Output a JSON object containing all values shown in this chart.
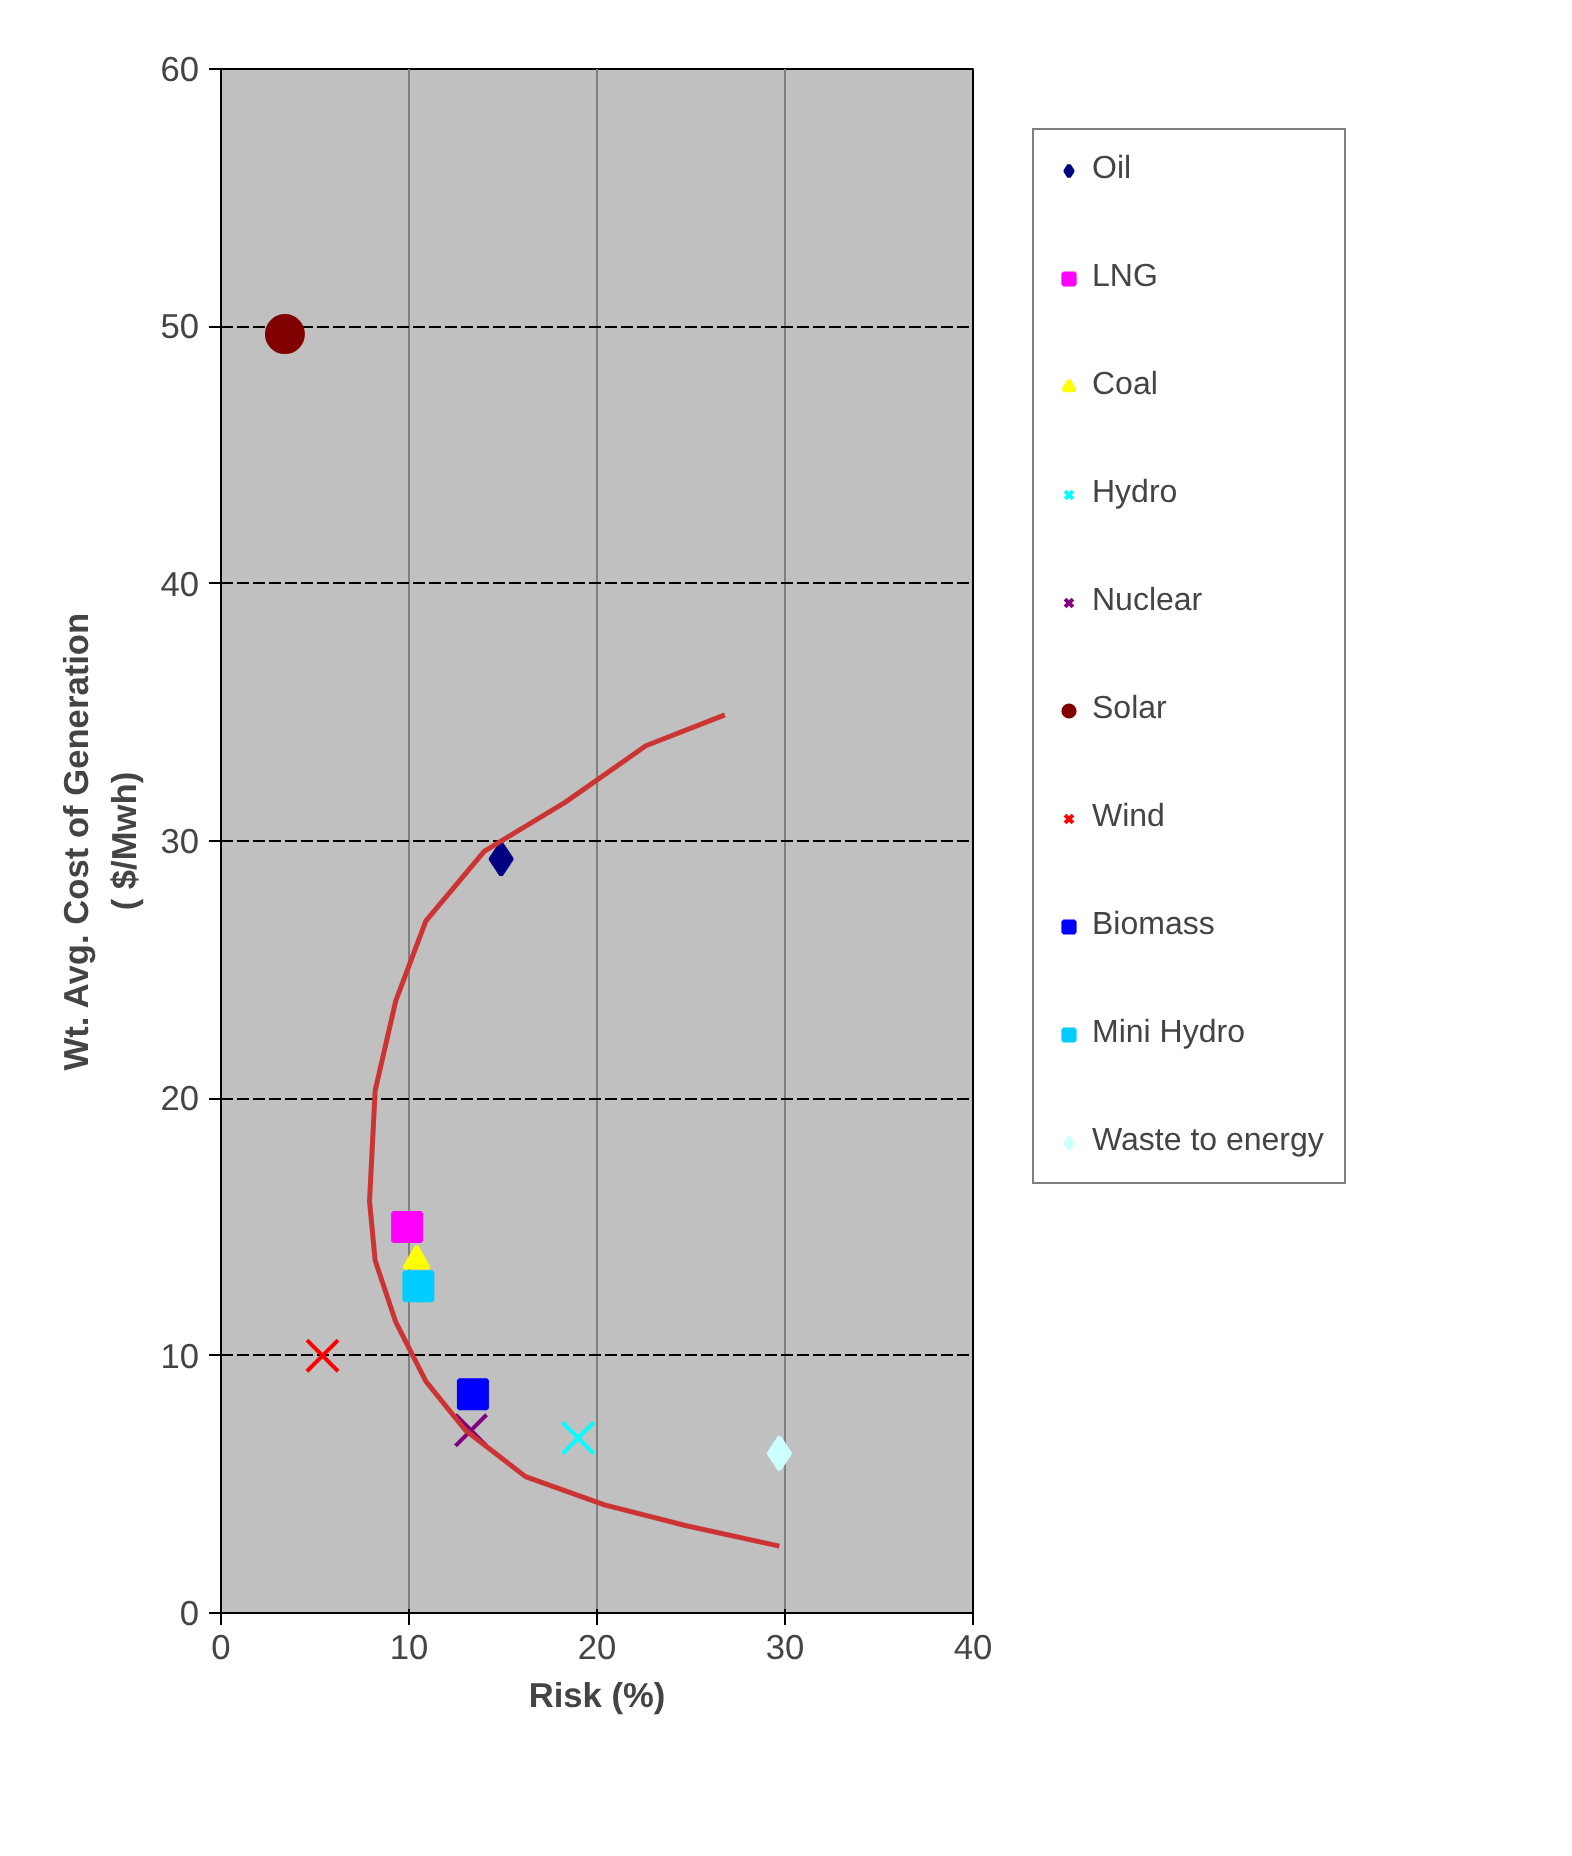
{
  "chart_data": {
    "type": "scatter",
    "xlabel": "Risk (%)",
    "ylabel": "Wt. Avg. Cost of Generation\n( $/Mwh)",
    "xlim": [
      0,
      40
    ],
    "ylim": [
      0,
      60
    ],
    "xticks": [
      0,
      10,
      20,
      30,
      40
    ],
    "yticks": [
      0,
      10,
      20,
      30,
      40,
      50,
      60
    ],
    "grid": true,
    "legend": "right",
    "series": [
      {
        "name": "Oil",
        "color": "#000080",
        "marker": "diamond",
        "x": [
          14.9
        ],
        "values": [
          29.3
        ]
      },
      {
        "name": "LNG",
        "color": "#ff00ff",
        "marker": "square",
        "x": [
          9.9
        ],
        "values": [
          15.0
        ]
      },
      {
        "name": "Coal",
        "color": "#ffff00",
        "marker": "triangle",
        "x": [
          10.4
        ],
        "values": [
          13.7
        ]
      },
      {
        "name": "Hydro",
        "color": "#00ffff",
        "marker": "cross",
        "x": [
          19.0
        ],
        "values": [
          6.8
        ]
      },
      {
        "name": "Nuclear",
        "color": "#800080",
        "marker": "cross",
        "x": [
          13.3
        ],
        "values": [
          7.1
        ]
      },
      {
        "name": "Solar",
        "color": "#800000",
        "marker": "circle",
        "x": [
          3.4
        ],
        "values": [
          49.7
        ]
      },
      {
        "name": "Wind",
        "color": "#ff0000",
        "marker": "cross",
        "x": [
          5.4
        ],
        "values": [
          10.0
        ]
      },
      {
        "name": "Biomass",
        "color": "#0000ff",
        "marker": "square",
        "x": [
          13.4
        ],
        "values": [
          8.5
        ]
      },
      {
        "name": "Mini Hydro",
        "color": "#00ccff",
        "marker": "square",
        "x": [
          10.5
        ],
        "values": [
          12.7
        ]
      },
      {
        "name": "Waste to energy",
        "color": "#ccffff",
        "marker": "diamond",
        "x": [
          29.7
        ],
        "values": [
          6.2
        ]
      },
      {
        "type": "line",
        "color": "#cc3333",
        "marker": "none",
        "x": [
          26.8,
          22.6,
          18.3,
          14.0,
          10.9,
          9.3,
          8.2,
          7.9,
          8.2,
          9.3,
          10.9,
          13.0,
          16.2,
          20.4,
          24.7,
          29.7
        ],
        "values": [
          34.9,
          33.7,
          31.5,
          29.6,
          26.9,
          23.8,
          20.3,
          16.0,
          13.7,
          11.3,
          9.0,
          7.1,
          5.3,
          4.2,
          3.4,
          2.6
        ]
      }
    ]
  }
}
